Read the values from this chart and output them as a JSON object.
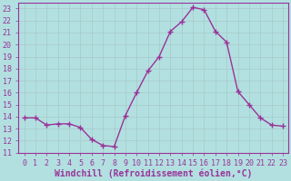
{
  "x": [
    0,
    1,
    2,
    3,
    4,
    5,
    6,
    7,
    8,
    9,
    10,
    11,
    12,
    13,
    14,
    15,
    16,
    17,
    18,
    19,
    20,
    21,
    22,
    23
  ],
  "y": [
    13.9,
    13.9,
    13.3,
    13.4,
    13.4,
    13.1,
    12.1,
    11.6,
    11.5,
    14.1,
    16.0,
    17.8,
    19.0,
    21.1,
    21.9,
    23.1,
    22.9,
    21.1,
    20.2,
    16.1,
    15.0,
    13.9,
    13.3,
    13.2
  ],
  "line_color": "#993399",
  "marker": "+",
  "marker_size": 4,
  "line_width": 1.0,
  "xlabel": "Windchill (Refroidissement éolien,°C)",
  "xlabel_fontsize": 7,
  "ylim": [
    11,
    23.5
  ],
  "xlim": [
    -0.5,
    23.5
  ],
  "yticks": [
    11,
    12,
    13,
    14,
    15,
    16,
    17,
    18,
    19,
    20,
    21,
    22,
    23
  ],
  "xticks": [
    0,
    1,
    2,
    3,
    4,
    5,
    6,
    7,
    8,
    9,
    10,
    11,
    12,
    13,
    14,
    15,
    16,
    17,
    18,
    19,
    20,
    21,
    22,
    23
  ],
  "bg_color": "#b2e0e0",
  "grid_color": "#aacccc",
  "tick_fontsize": 6
}
